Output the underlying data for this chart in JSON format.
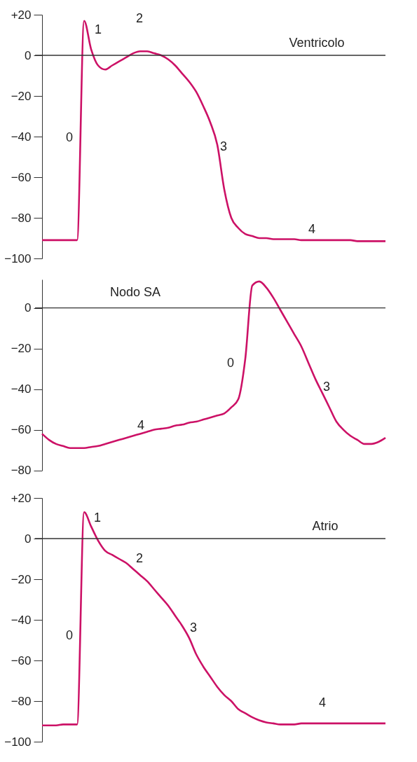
{
  "chart_data": [
    {
      "type": "line",
      "categories": [
        null,
        null,
        null,
        null,
        null,
        null,
        null,
        null,
        null,
        null,
        null,
        null,
        null,
        null,
        null,
        null,
        null,
        null,
        null,
        null,
        null,
        null,
        null,
        null,
        null,
        null,
        null,
        null,
        null,
        null,
        null,
        null,
        null,
        null,
        null,
        null,
        null,
        null,
        null,
        null,
        null,
        null,
        null,
        null,
        null,
        null,
        null,
        null,
        null,
        null
      ],
      "series": [
        {
          "color": "#cc1166",
          "values": [
            -91,
            -91,
            -91,
            -91,
            -91,
            -91,
            17,
            3,
            -5,
            -7,
            -5,
            -3,
            -1,
            1,
            2,
            2,
            1,
            0,
            -2,
            -5,
            -9,
            -13,
            -18,
            -25,
            -33,
            -44,
            -66,
            -80,
            -85,
            -88,
            -89,
            -90,
            -90,
            -90.5,
            -90.5,
            -90.5,
            -90.5,
            -91,
            -91,
            -91,
            -91,
            -91,
            -91,
            -91,
            -91,
            -91.5,
            -91.5,
            -91.5,
            -91.5,
            -91.5
          ]
        }
      ],
      "ylim": [
        -100,
        20
      ],
      "yticks": [
        -100,
        -80,
        -60,
        -40,
        -20,
        0,
        {
          "value": 20,
          "label": "+20"
        }
      ],
      "tick_labels": "y",
      "ref_lines": [
        {
          "axis": "y",
          "value": 0,
          "color": "#333333"
        }
      ],
      "annotations": [
        "0",
        "1",
        "2",
        "3",
        "4",
        "Ventricolo"
      ]
    },
    {
      "type": "line",
      "categories": [
        null,
        null,
        null,
        null,
        null,
        null,
        null,
        null,
        null,
        null,
        null,
        null,
        null,
        null,
        null,
        null,
        null,
        null,
        null,
        null,
        null,
        null,
        null,
        null,
        null,
        null,
        null,
        null,
        null,
        null,
        null,
        null,
        null,
        null,
        null,
        null,
        null,
        null,
        null,
        null,
        null,
        null,
        null,
        null,
        null,
        null,
        null,
        null,
        null,
        null
      ],
      "series": [
        {
          "color": "#cc1166",
          "values": [
            -62,
            -65,
            -67,
            -68,
            -69,
            -69,
            -69,
            -68.5,
            -68,
            -67,
            -66,
            -65,
            -64,
            -63,
            -62,
            -61,
            -60,
            -59.5,
            -59,
            -58,
            -57.5,
            -56.5,
            -56,
            -55,
            -54,
            -53,
            -52,
            -49,
            -45,
            -25,
            11,
            13,
            10,
            5,
            -1,
            -7,
            -13,
            -19,
            -27,
            -35,
            -42,
            -49,
            -56,
            -60,
            -63,
            -65,
            -67,
            -67,
            -66,
            -64
          ]
        }
      ],
      "ylim": [
        -80,
        14
      ],
      "yticks": [
        -80,
        -60,
        -40,
        -20,
        0
      ],
      "tick_labels": "y",
      "ref_lines": [
        {
          "axis": "y",
          "value": 0,
          "color": "#333333"
        }
      ],
      "annotations": [
        "Nodo SA",
        "0",
        "3",
        "4"
      ]
    },
    {
      "type": "line",
      "categories": [
        null,
        null,
        null,
        null,
        null,
        null,
        null,
        null,
        null,
        null,
        null,
        null,
        null,
        null,
        null,
        null,
        null,
        null,
        null,
        null,
        null,
        null,
        null,
        null,
        null,
        null,
        null,
        null,
        null,
        null,
        null,
        null,
        null,
        null,
        null,
        null,
        null,
        null,
        null,
        null,
        null,
        null,
        null,
        null,
        null,
        null,
        null,
        null,
        null,
        null
      ],
      "series": [
        {
          "color": "#cc1166",
          "values": [
            -92,
            -92,
            -92,
            -91.5,
            -91.5,
            -91.5,
            13,
            6,
            -1,
            -6,
            -8,
            -10,
            -12,
            -15,
            -18,
            -21,
            -25,
            -29,
            -33,
            -38,
            -43,
            -49,
            -57,
            -63,
            -68,
            -73,
            -77,
            -80,
            -84,
            -86,
            -88,
            -89.5,
            -90.5,
            -91,
            -91.5,
            -91.5,
            -91.5,
            -91,
            -91,
            -91,
            -91,
            -91,
            -91,
            -91,
            -91,
            -91,
            -91,
            -91,
            -91,
            -91
          ]
        }
      ],
      "ylim": [
        -100,
        20
      ],
      "yticks": [
        -100,
        -80,
        -60,
        -40,
        -20,
        0,
        {
          "value": 20,
          "label": "+20"
        }
      ],
      "tick_labels": "y",
      "ref_lines": [
        {
          "axis": "y",
          "value": 0,
          "color": "#333333"
        }
      ],
      "annotations": [
        "0",
        "1",
        "2",
        "3",
        "4",
        "Atrio"
      ]
    }
  ]
}
